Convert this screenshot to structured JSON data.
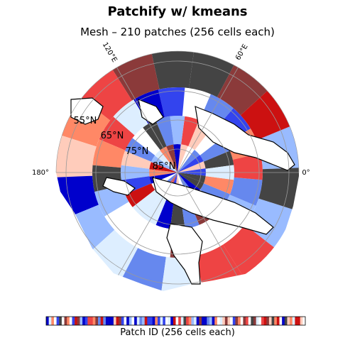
{
  "title": "Patchify w/ kmeans",
  "subtitle": "Mesh – 210 patches (256 cells each)",
  "map": {
    "projection": "north-polar-stereographic",
    "patch_count": 210,
    "cells_per_patch": 256,
    "longitude_labels": [
      "120°E",
      "60°E",
      "180°",
      "0°"
    ],
    "latitude_labels": [
      "55°N",
      "65°N",
      "75°N",
      "85°N"
    ],
    "colormap": "seismic-shuffled",
    "colors": [
      "#0000cc",
      "#3344ee",
      "#6688ee",
      "#99bbff",
      "#ddeeff",
      "#ffffff",
      "#ffccbb",
      "#ff8866",
      "#ee4444",
      "#cc1111",
      "#8b3a3a",
      "#444444"
    ]
  },
  "colorbar": {
    "label": "Patch ID (256 cells each)"
  }
}
